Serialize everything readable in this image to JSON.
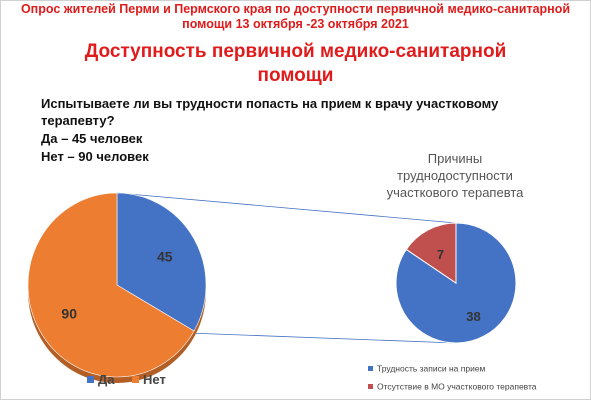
{
  "header": {
    "line1": "Опрос жителей Перми и Пермского края по доступности первичной медико-санитарной",
    "line2": "помощи 13 октября -23 октября 2021"
  },
  "title": {
    "line1": "Доступность первичной медико-санитарной",
    "line2": "помощи"
  },
  "question": "Испытываете ли вы трудности попасть на прием к врачу участковому терапевту?",
  "answers": {
    "yes": "Да – 45 человек",
    "no": "Нет – 90 человек"
  },
  "chart_data": [
    {
      "type": "pie",
      "slices": [
        {
          "label": "Да",
          "value": 45,
          "color": "#4472c4"
        },
        {
          "label": "Нет",
          "value": 90,
          "color": "#ed7d31"
        }
      ],
      "data_labels": true,
      "legend": "bottom"
    },
    {
      "type": "pie",
      "title": [
        "Причины",
        "труднодоступности",
        "участкового терапевта"
      ],
      "slices": [
        {
          "label": "Трудность записи на прием",
          "value": 38,
          "color": "#4472c4"
        },
        {
          "label": "Отсутствие в МО участкового терапевта",
          "value": 7,
          "color": "#c0504d"
        }
      ],
      "data_labels": true,
      "legend": "bottom"
    }
  ],
  "connector_color": "#4472c4"
}
